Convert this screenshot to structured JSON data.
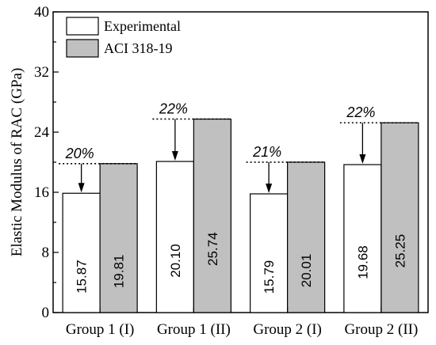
{
  "chart_data": {
    "type": "bar",
    "ylabel": "Elastic Modulus of RAC (GPa)",
    "xlabel": "",
    "ylim": [
      0,
      40
    ],
    "yticks": [
      0,
      8,
      16,
      24,
      32,
      40
    ],
    "categories": [
      "Group 1 (I)",
      "Group 1 (II)",
      "Group 2 (I)",
      "Group 2 (II)"
    ],
    "series": [
      {
        "name": "Experimental",
        "values": [
          15.87,
          20.1,
          15.79,
          19.68
        ],
        "labels": [
          "15.87",
          "20.10",
          "15.79",
          "19.68"
        ],
        "color": "#ffffff"
      },
      {
        "name": "ACI 318-19",
        "values": [
          19.81,
          25.74,
          20.01,
          25.25
        ],
        "labels": [
          "19.81",
          "25.74",
          "20.01",
          "25.25"
        ],
        "color": "#c0c0c0"
      }
    ],
    "annotations": [
      "20%",
      "22%",
      "21%",
      "22%"
    ],
    "legend": "top-left",
    "grid": false
  }
}
